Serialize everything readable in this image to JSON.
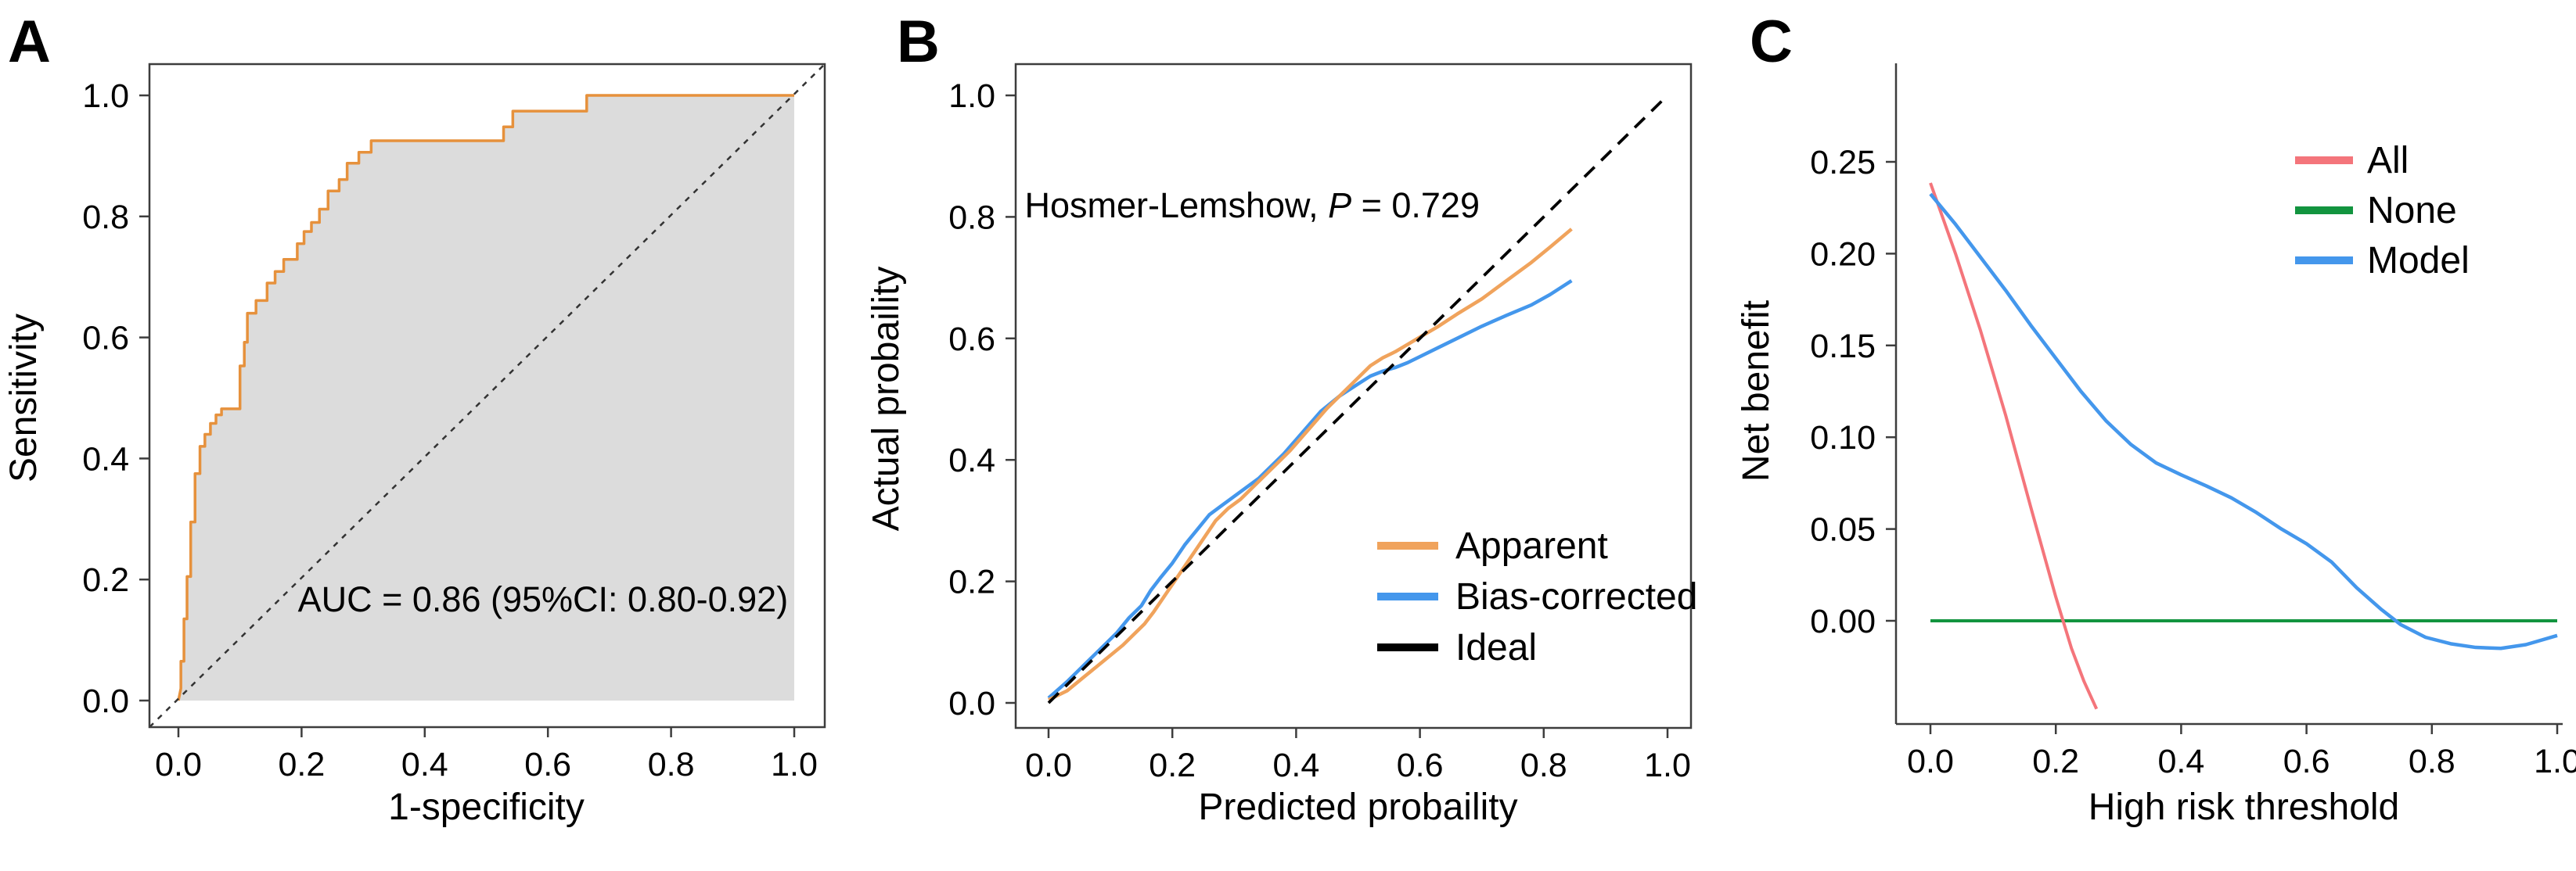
{
  "figure": {
    "background": "#ffffff",
    "axis_color": "#3d3d3d",
    "text_color": "#000000"
  },
  "chart_data": [
    {
      "panel": "A",
      "type": "line",
      "title": "",
      "xlabel": "1-specificity",
      "ylabel": "Sensitivity",
      "xlim": [
        0,
        1
      ],
      "ylim": [
        0,
        1
      ],
      "grid": false,
      "box": "full",
      "x_tick_values": [
        0.0,
        0.2,
        0.4,
        0.6,
        0.8,
        1.0
      ],
      "x_ticks": [
        "0.0",
        "0.2",
        "0.4",
        "0.6",
        "0.8",
        "1.0"
      ],
      "y_tick_values": [
        0.0,
        0.2,
        0.4,
        0.6,
        0.8,
        1.0
      ],
      "y_ticks": [
        "0.0",
        "0.2",
        "0.4",
        "0.6",
        "0.8",
        "1.0"
      ],
      "annotations": [
        {
          "parts": [
            {
              "text": "AUC = 0.86 (95%CI: 0.80-0.92)",
              "italic": false
            }
          ],
          "x": 0.592,
          "y": 0.168,
          "anchor": "middle"
        }
      ],
      "legend": null,
      "series": [
        {
          "name": "ROC curve",
          "color": "#E6913C",
          "width": 3.5,
          "dash": null,
          "fill_under": "#DCDCDC",
          "points": [
            [
              0,
              0
            ],
            [
              0.004,
              0.02
            ],
            [
              0.004,
              0.065
            ],
            [
              0.009,
              0.065
            ],
            [
              0.009,
              0.135
            ],
            [
              0.014,
              0.135
            ],
            [
              0.014,
              0.205
            ],
            [
              0.02,
              0.205
            ],
            [
              0.02,
              0.295
            ],
            [
              0.027,
              0.295
            ],
            [
              0.027,
              0.375
            ],
            [
              0.035,
              0.375
            ],
            [
              0.035,
              0.42
            ],
            [
              0.043,
              0.42
            ],
            [
              0.043,
              0.44
            ],
            [
              0.052,
              0.44
            ],
            [
              0.052,
              0.458
            ],
            [
              0.061,
              0.458
            ],
            [
              0.061,
              0.472
            ],
            [
              0.07,
              0.472
            ],
            [
              0.07,
              0.482
            ],
            [
              0.1,
              0.482
            ],
            [
              0.1,
              0.553
            ],
            [
              0.107,
              0.553
            ],
            [
              0.107,
              0.592
            ],
            [
              0.112,
              0.592
            ],
            [
              0.112,
              0.64
            ],
            [
              0.126,
              0.64
            ],
            [
              0.126,
              0.661
            ],
            [
              0.144,
              0.661
            ],
            [
              0.144,
              0.69
            ],
            [
              0.157,
              0.69
            ],
            [
              0.157,
              0.709
            ],
            [
              0.171,
              0.709
            ],
            [
              0.171,
              0.729
            ],
            [
              0.193,
              0.729
            ],
            [
              0.193,
              0.755
            ],
            [
              0.204,
              0.755
            ],
            [
              0.204,
              0.775
            ],
            [
              0.216,
              0.775
            ],
            [
              0.216,
              0.79
            ],
            [
              0.229,
              0.79
            ],
            [
              0.229,
              0.812
            ],
            [
              0.243,
              0.812
            ],
            [
              0.243,
              0.842
            ],
            [
              0.261,
              0.842
            ],
            [
              0.261,
              0.861
            ],
            [
              0.274,
              0.861
            ],
            [
              0.274,
              0.888
            ],
            [
              0.293,
              0.888
            ],
            [
              0.293,
              0.906
            ],
            [
              0.313,
              0.906
            ],
            [
              0.313,
              0.925
            ],
            [
              0.528,
              0.925
            ],
            [
              0.528,
              0.948
            ],
            [
              0.543,
              0.948
            ],
            [
              0.543,
              0.974
            ],
            [
              0.663,
              0.974
            ],
            [
              0.663,
              1.0
            ],
            [
              1.0,
              1.0
            ]
          ]
        },
        {
          "name": "Chance diagonal",
          "color": "#333333",
          "width": 2.5,
          "dash": "7 8",
          "corner_to_corner": true,
          "points": [
            [
              0,
              0
            ],
            [
              1,
              1
            ]
          ]
        }
      ]
    },
    {
      "panel": "B",
      "type": "line",
      "title": "",
      "xlabel": "Predicted probaility",
      "ylabel": "Actual probaility",
      "xlim": [
        0,
        1
      ],
      "ylim": [
        0,
        1
      ],
      "grid": false,
      "box": "full",
      "x_tick_values": [
        0.0,
        0.2,
        0.4,
        0.6,
        0.8,
        1.0
      ],
      "x_ticks": [
        "0.0",
        "0.2",
        "0.4",
        "0.6",
        "0.8",
        "1.0"
      ],
      "y_tick_values": [
        0.0,
        0.2,
        0.4,
        0.6,
        0.8,
        1.0
      ],
      "y_ticks": [
        "0.0",
        "0.2",
        "0.4",
        "0.6",
        "0.8",
        "1.0"
      ],
      "annotations": [
        {
          "parts": [
            {
              "text": "Hosmer-Lemshow, ",
              "italic": false
            },
            {
              "text": "P",
              "italic": true
            },
            {
              "text": " = 0.729",
              "italic": false
            }
          ],
          "x": 0.329,
          "y": 0.82,
          "anchor": "middle"
        }
      ],
      "legend": {
        "entries": [
          {
            "label": "Apparent",
            "color": "#F0A35C"
          },
          {
            "label": "Bias-corrected",
            "color": "#4497EC"
          },
          {
            "label": "Ideal",
            "color": "#000000"
          }
        ]
      },
      "series": [
        {
          "name": "Bias-corrected",
          "color": "#4497EC",
          "width": 4.5,
          "dash": null,
          "points": [
            [
              0,
              0.008
            ],
            [
              0.03,
              0.035
            ],
            [
              0.06,
              0.065
            ],
            [
              0.09,
              0.095
            ],
            [
              0.11,
              0.115
            ],
            [
              0.13,
              0.14
            ],
            [
              0.15,
              0.16
            ],
            [
              0.165,
              0.185
            ],
            [
              0.18,
              0.205
            ],
            [
              0.2,
              0.23
            ],
            [
              0.22,
              0.26
            ],
            [
              0.24,
              0.285
            ],
            [
              0.26,
              0.31
            ],
            [
              0.28,
              0.325
            ],
            [
              0.3,
              0.34
            ],
            [
              0.32,
              0.355
            ],
            [
              0.34,
              0.37
            ],
            [
              0.36,
              0.39
            ],
            [
              0.38,
              0.41
            ],
            [
              0.41,
              0.445
            ],
            [
              0.44,
              0.48
            ],
            [
              0.47,
              0.505
            ],
            [
              0.5,
              0.525
            ],
            [
              0.52,
              0.538
            ],
            [
              0.54,
              0.546
            ],
            [
              0.56,
              0.552
            ],
            [
              0.58,
              0.56
            ],
            [
              0.6,
              0.57
            ],
            [
              0.63,
              0.585
            ],
            [
              0.66,
              0.6
            ],
            [
              0.7,
              0.62
            ],
            [
              0.74,
              0.638
            ],
            [
              0.78,
              0.655
            ],
            [
              0.81,
              0.672
            ],
            [
              0.845,
              0.695
            ]
          ]
        },
        {
          "name": "Apparent",
          "color": "#F0A35C",
          "width": 4.5,
          "dash": null,
          "points": [
            [
              0,
              0.005
            ],
            [
              0.03,
              0.02
            ],
            [
              0.06,
              0.045
            ],
            [
              0.09,
              0.07
            ],
            [
              0.12,
              0.095
            ],
            [
              0.14,
              0.115
            ],
            [
              0.155,
              0.13
            ],
            [
              0.17,
              0.15
            ],
            [
              0.19,
              0.18
            ],
            [
              0.21,
              0.21
            ],
            [
              0.23,
              0.24
            ],
            [
              0.25,
              0.27
            ],
            [
              0.27,
              0.3
            ],
            [
              0.29,
              0.32
            ],
            [
              0.31,
              0.335
            ],
            [
              0.33,
              0.355
            ],
            [
              0.35,
              0.375
            ],
            [
              0.37,
              0.395
            ],
            [
              0.39,
              0.415
            ],
            [
              0.42,
              0.45
            ],
            [
              0.45,
              0.485
            ],
            [
              0.48,
              0.515
            ],
            [
              0.5,
              0.535
            ],
            [
              0.52,
              0.555
            ],
            [
              0.54,
              0.568
            ],
            [
              0.56,
              0.578
            ],
            [
              0.58,
              0.59
            ],
            [
              0.6,
              0.602
            ],
            [
              0.63,
              0.62
            ],
            [
              0.66,
              0.64
            ],
            [
              0.7,
              0.665
            ],
            [
              0.74,
              0.695
            ],
            [
              0.78,
              0.725
            ],
            [
              0.81,
              0.75
            ],
            [
              0.845,
              0.78
            ]
          ]
        },
        {
          "name": "Ideal",
          "color": "#000000",
          "width": 3.8,
          "dash": "18 12",
          "points": [
            [
              0,
              0
            ],
            [
              1,
              1
            ]
          ]
        }
      ]
    },
    {
      "panel": "C",
      "type": "line",
      "title": "",
      "xlabel": "High risk threshold",
      "ylabel": "Net benefit",
      "xlim": [
        0,
        1
      ],
      "ylim": [
        -0.056,
        0.304
      ],
      "grid": false,
      "box": "lb",
      "x_tick_values": [
        0.0,
        0.2,
        0.4,
        0.6,
        0.8,
        1.0
      ],
      "x_ticks": [
        "0.0",
        "0.2",
        "0.4",
        "0.6",
        "0.8",
        "1.0"
      ],
      "y_tick_values": [
        0.0,
        0.05,
        0.1,
        0.15,
        0.2,
        0.25
      ],
      "y_ticks": [
        "0.00",
        "0.05",
        "0.10",
        "0.15",
        "0.20",
        "0.25"
      ],
      "annotations": [],
      "legend": {
        "entries": [
          {
            "label": "All",
            "color": "#F4757B"
          },
          {
            "label": "None",
            "color": "#12943F"
          },
          {
            "label": "Model",
            "color": "#4497EC"
          }
        ]
      },
      "series": [
        {
          "name": "None",
          "color": "#12943F",
          "width": 4,
          "dash": null,
          "points": [
            [
              0,
              0
            ],
            [
              1,
              0
            ]
          ]
        },
        {
          "name": "All",
          "color": "#F4757B",
          "width": 4,
          "dash": null,
          "points": [
            [
              0,
              0.2385
            ],
            [
              0.04,
              0.2
            ],
            [
              0.08,
              0.158
            ],
            [
              0.12,
              0.112
            ],
            [
              0.16,
              0.062
            ],
            [
              0.2,
              0.013
            ],
            [
              0.225,
              -0.015
            ],
            [
              0.245,
              -0.033
            ],
            [
              0.265,
              -0.048
            ]
          ]
        },
        {
          "name": "Model",
          "color": "#4497EC",
          "width": 4.5,
          "dash": null,
          "points": [
            [
              0,
              0.2325
            ],
            [
              0.04,
              0.216
            ],
            [
              0.08,
              0.198
            ],
            [
              0.12,
              0.18
            ],
            [
              0.16,
              0.161
            ],
            [
              0.2,
              0.143
            ],
            [
              0.24,
              0.125
            ],
            [
              0.28,
              0.109
            ],
            [
              0.32,
              0.096
            ],
            [
              0.36,
              0.086
            ],
            [
              0.4,
              0.0795
            ],
            [
              0.44,
              0.0735
            ],
            [
              0.48,
              0.067
            ],
            [
              0.52,
              0.059
            ],
            [
              0.56,
              0.05
            ],
            [
              0.6,
              0.042
            ],
            [
              0.64,
              0.032
            ],
            [
              0.68,
              0.018
            ],
            [
              0.72,
              0.006
            ],
            [
              0.75,
              -0.002
            ],
            [
              0.79,
              -0.009
            ],
            [
              0.83,
              -0.0125
            ],
            [
              0.87,
              -0.0145
            ],
            [
              0.91,
              -0.015
            ],
            [
              0.95,
              -0.013
            ],
            [
              1.0,
              -0.008
            ]
          ]
        }
      ]
    }
  ]
}
